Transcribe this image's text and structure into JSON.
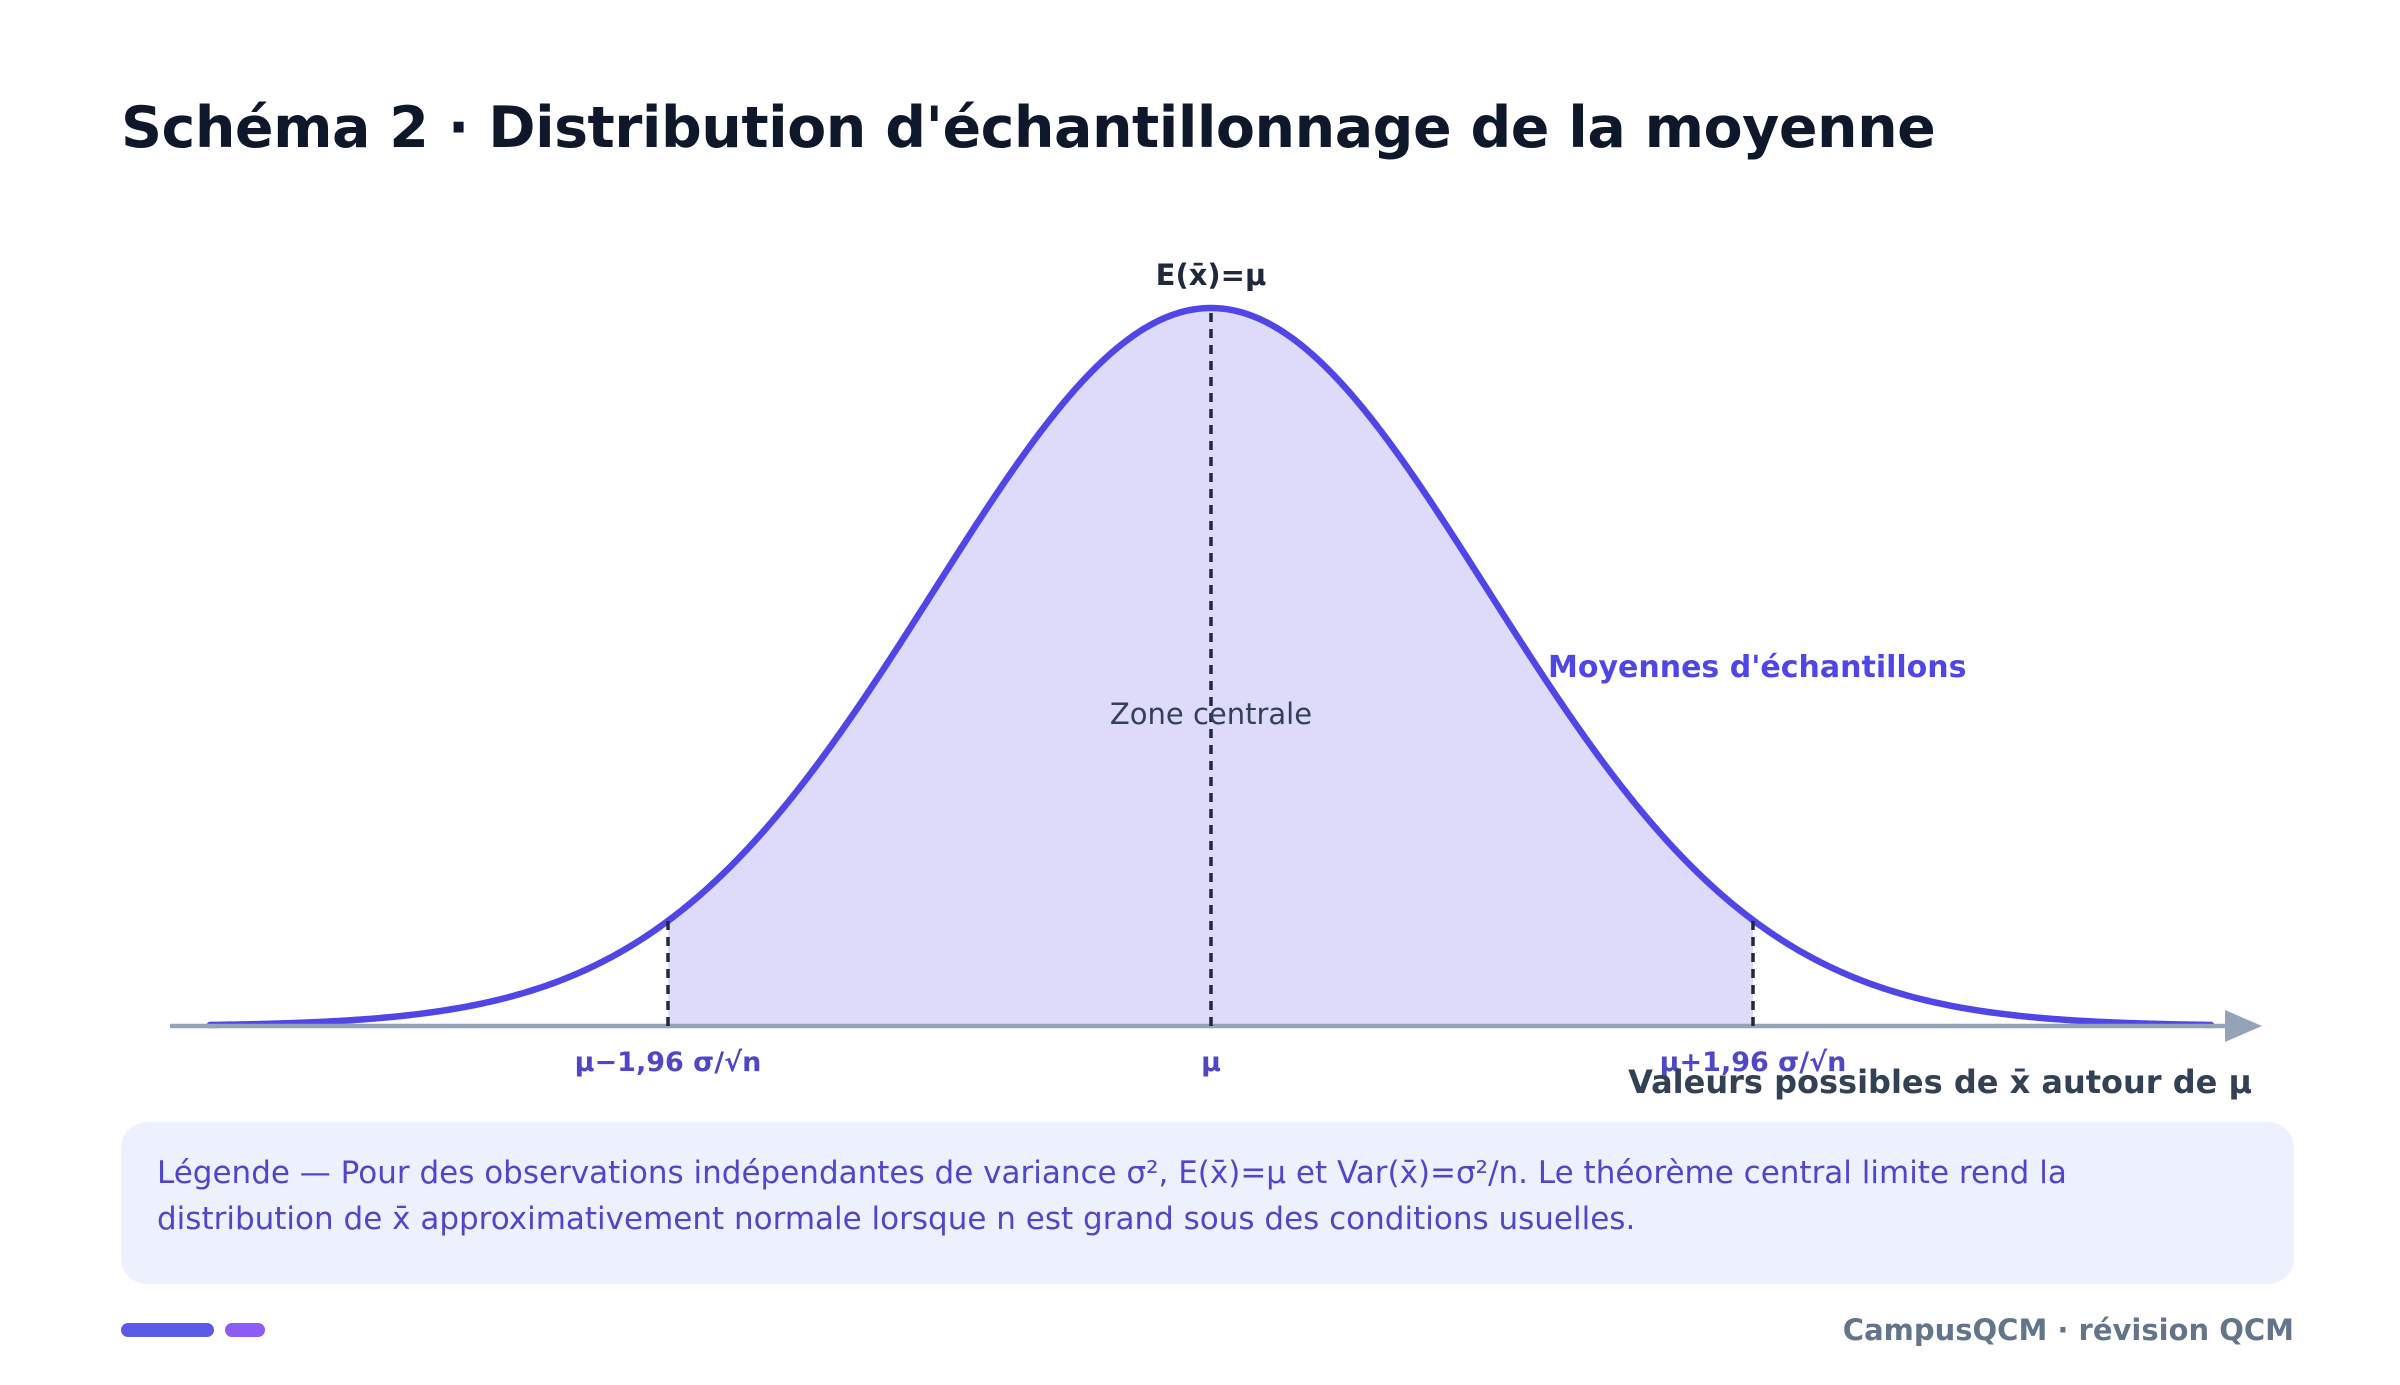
{
  "title": "Schéma 2 · Distribution d'échantillonnage de la moyenne",
  "diagram": {
    "peak_label": "E(x̄)=μ",
    "curve_label": "Moyennes d'échantillons",
    "center_zone_label": "Zone centrale",
    "axis_label": "Valeurs possibles de x̄ autour de μ",
    "tick_left": "μ−1,96 σ/√n",
    "tick_center": "μ",
    "tick_right": "μ+1,96 σ/√n",
    "colors": {
      "curve": "#4f46e5",
      "fill": "#dedafa",
      "axis": "#94a3b8",
      "tick_text": "#4f46c8",
      "guide": "#1e293b"
    }
  },
  "legend": {
    "text": "Légende — Pour des observations indépendantes de variance σ², E(x̄)=μ et Var(x̄)=σ²/n. Le théorème central limite rend la distribution de x̄ approximativement normale lorsque n est grand sous des conditions usuelles."
  },
  "footer": {
    "brand": "CampusQCM · révision QCM"
  }
}
